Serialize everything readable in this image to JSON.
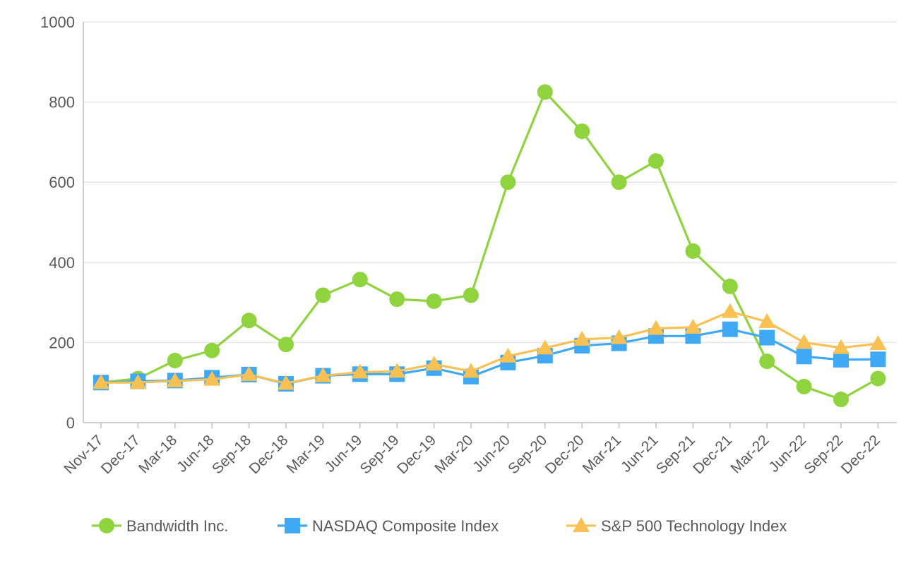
{
  "chart_data": {
    "type": "line",
    "title": "",
    "xlabel": "",
    "ylabel": "",
    "ylim": [
      0,
      1000
    ],
    "yticks": [
      "0",
      "200",
      "400",
      "600",
      "800",
      "1000"
    ],
    "grid": true,
    "legend_position": "bottom",
    "categories": [
      "Nov-17",
      "Dec-17",
      "Mar-18",
      "Jun-18",
      "Sep-18",
      "Dec-18",
      "Mar-19",
      "Jun-19",
      "Sep-19",
      "Dec-19",
      "Mar-20",
      "Jun-20",
      "Sep-20",
      "Dec-20",
      "Mar-21",
      "Jun-21",
      "Sep-21",
      "Dec-21",
      "Mar-22",
      "Jun-22",
      "Sep-22",
      "Dec-22"
    ],
    "series": [
      {
        "name": "Bandwidth Inc.",
        "color": "#8fd43f",
        "marker": "circle",
        "values": [
          100,
          110,
          155,
          180,
          255,
          195,
          318,
          357,
          308,
          303,
          318,
          600,
          825,
          727,
          600,
          653,
          428,
          340,
          153,
          90,
          58,
          110
        ]
      },
      {
        "name": "NASDAQ Composite Index",
        "color": "#3fa9f5",
        "marker": "square",
        "values": [
          100,
          103,
          105,
          112,
          120,
          97,
          117,
          121,
          121,
          136,
          115,
          150,
          167,
          192,
          198,
          216,
          216,
          233,
          212,
          165,
          157,
          158
        ]
      },
      {
        "name": "S&P 500 Technology Index",
        "color": "#f9c153",
        "marker": "triangle",
        "values": [
          100,
          100,
          104,
          108,
          120,
          98,
          117,
          126,
          128,
          146,
          128,
          166,
          186,
          208,
          212,
          235,
          238,
          277,
          252,
          200,
          187,
          197
        ]
      }
    ]
  }
}
